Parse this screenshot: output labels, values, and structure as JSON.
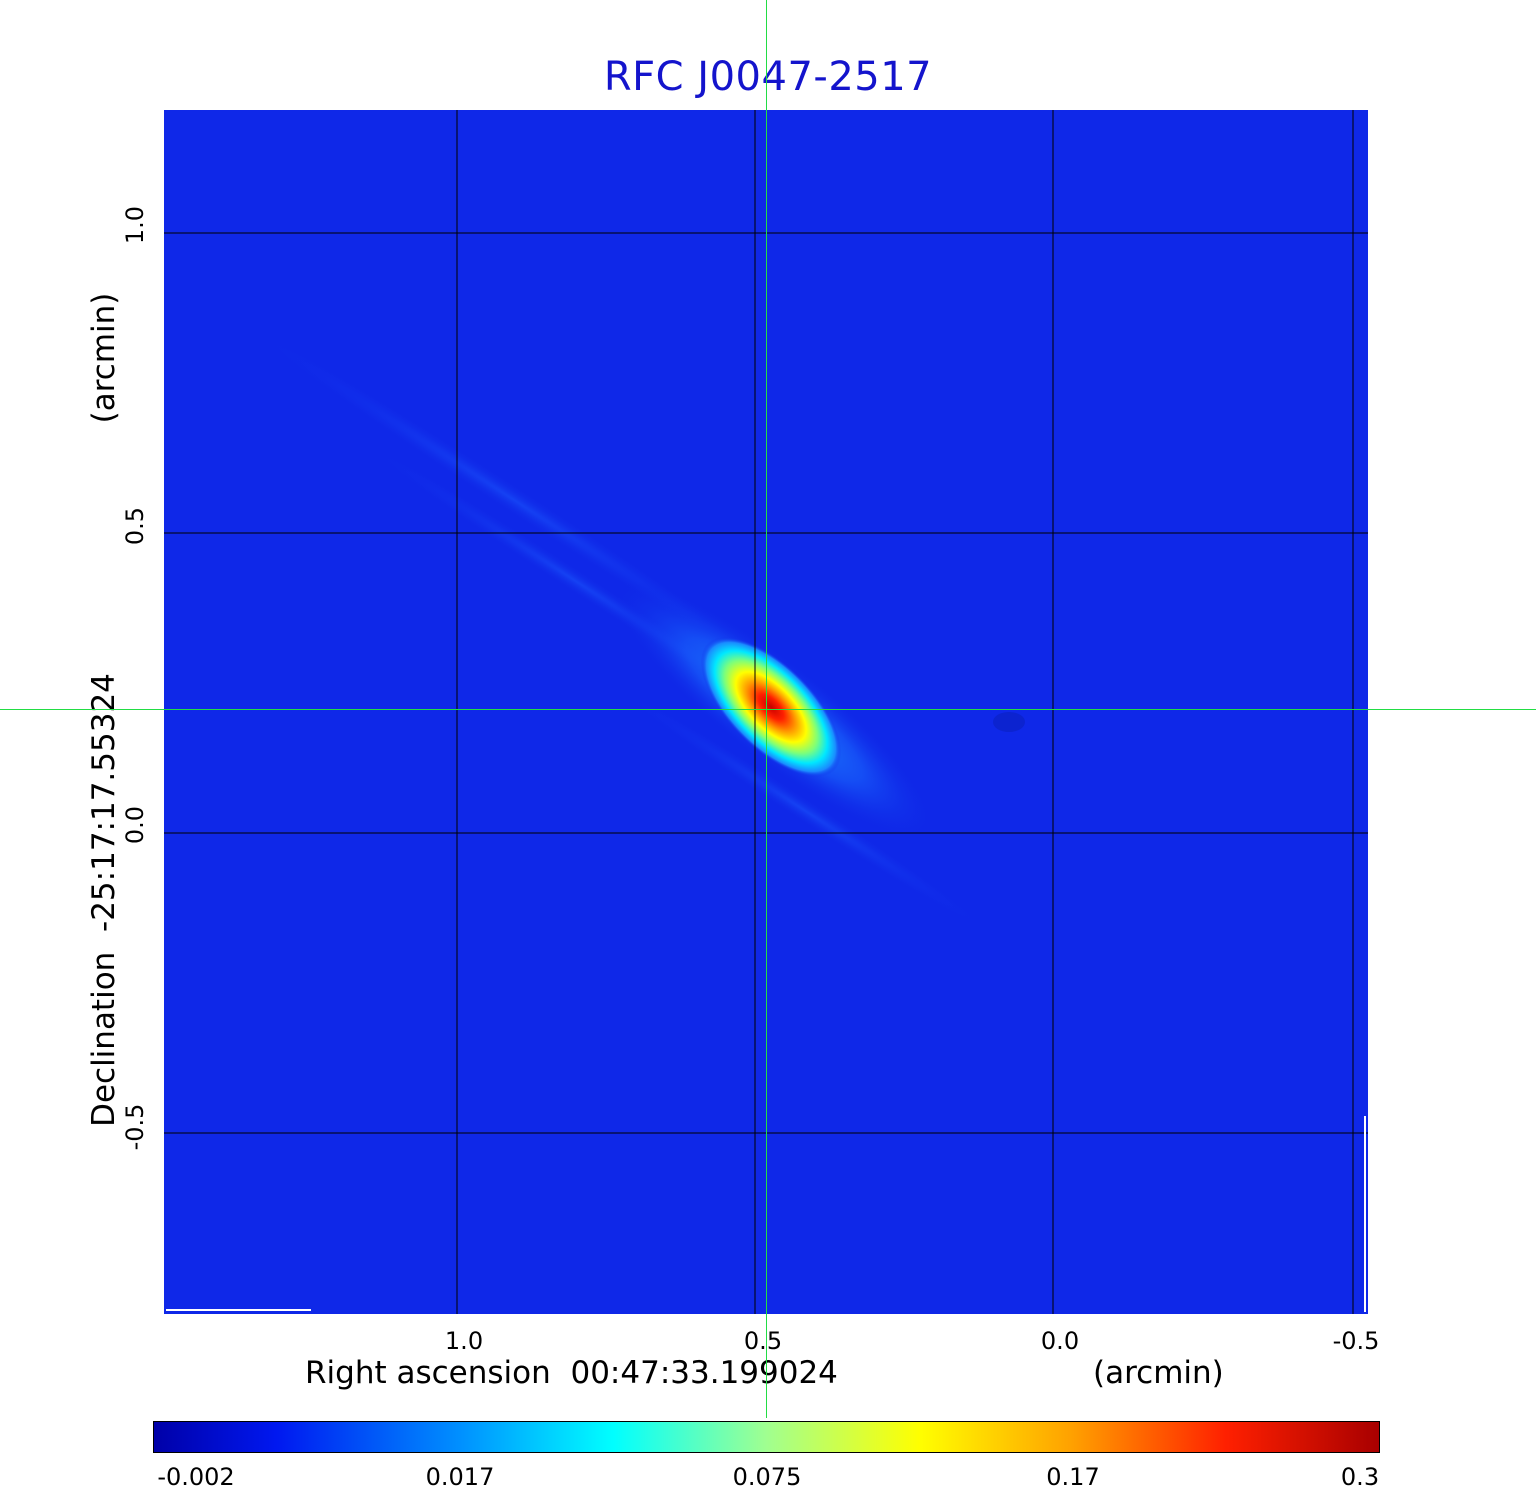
{
  "title": "RFC J0047-2517",
  "x_axis": {
    "label": "Right ascension  00:47:33.199024",
    "unit": "(arcmin)",
    "ticks": [
      "1.0",
      "0.5",
      "0.0",
      "-0.5"
    ]
  },
  "y_axis": {
    "label": "Declination  -25:17:17.55324",
    "unit": "(arcmin)",
    "ticks": [
      "1.0",
      "0.5",
      "0.0",
      "-0.5"
    ]
  },
  "colorbar": {
    "ticks": [
      "-0.002",
      "0.017",
      "0.075",
      "0.17",
      "0.3"
    ],
    "colormap": "jet"
  },
  "colors": {
    "title": "#1414cc",
    "background_map": "#0f28e8",
    "crosshair": "#22dd44"
  }
}
